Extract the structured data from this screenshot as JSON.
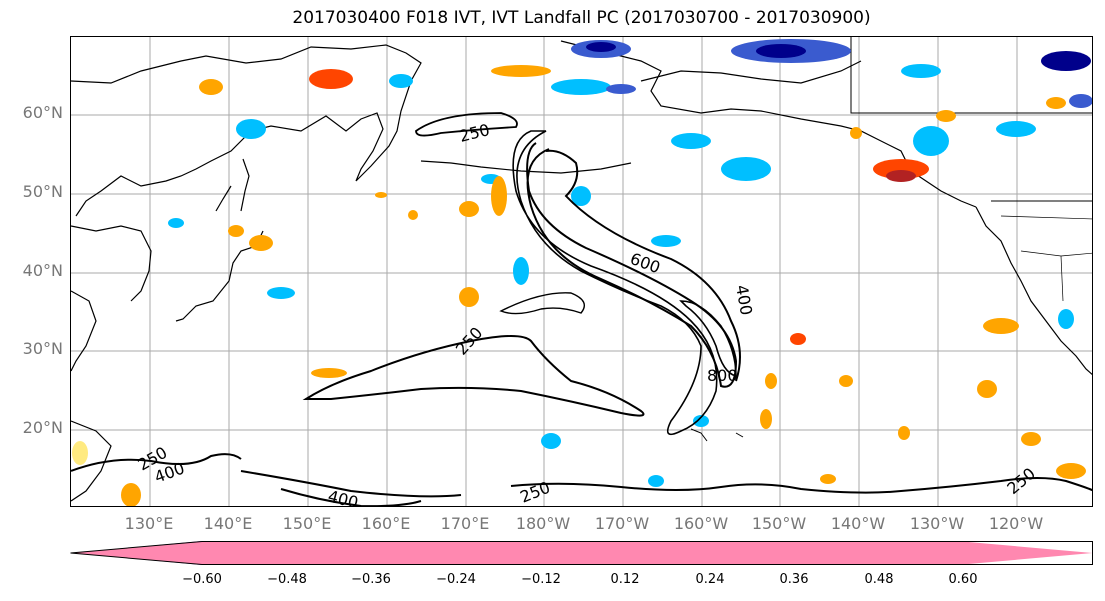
{
  "title": "2017030400 F018 IVT, IVT Landfall PC (2017030700 - 2017030900)",
  "lat_labels": [
    "60°N",
    "50°N",
    "40°N",
    "30°N",
    "20°N"
  ],
  "lon_labels": [
    "130°E",
    "140°E",
    "150°E",
    "160°E",
    "170°E",
    "180°W",
    "170°W",
    "160°W",
    "150°W",
    "140°W",
    "130°W",
    "120°W"
  ],
  "contour_labels": {
    "c250_north": "250",
    "c600": "600",
    "c400_east": "400",
    "c250_mid": "250",
    "c800": "800",
    "c250_south": "250",
    "c250_southeast": "250",
    "c400_southwest": "400",
    "c250_southwest": "250",
    "c400_southwest2": "400"
  },
  "colorbar": {
    "ticks": [
      "−0.60",
      "−0.48",
      "−0.36",
      "−0.24",
      "−0.12",
      "0.12",
      "0.24",
      "0.36",
      "0.48",
      "0.60"
    ],
    "colors": [
      "#9932cc",
      "#00008b",
      "#3a5bcf",
      "#00bfff",
      "#b0e2ff",
      "#ffffff",
      "#ffea80",
      "#ffa500",
      "#ff4500",
      "#b22222",
      "#ff88b0"
    ]
  }
}
